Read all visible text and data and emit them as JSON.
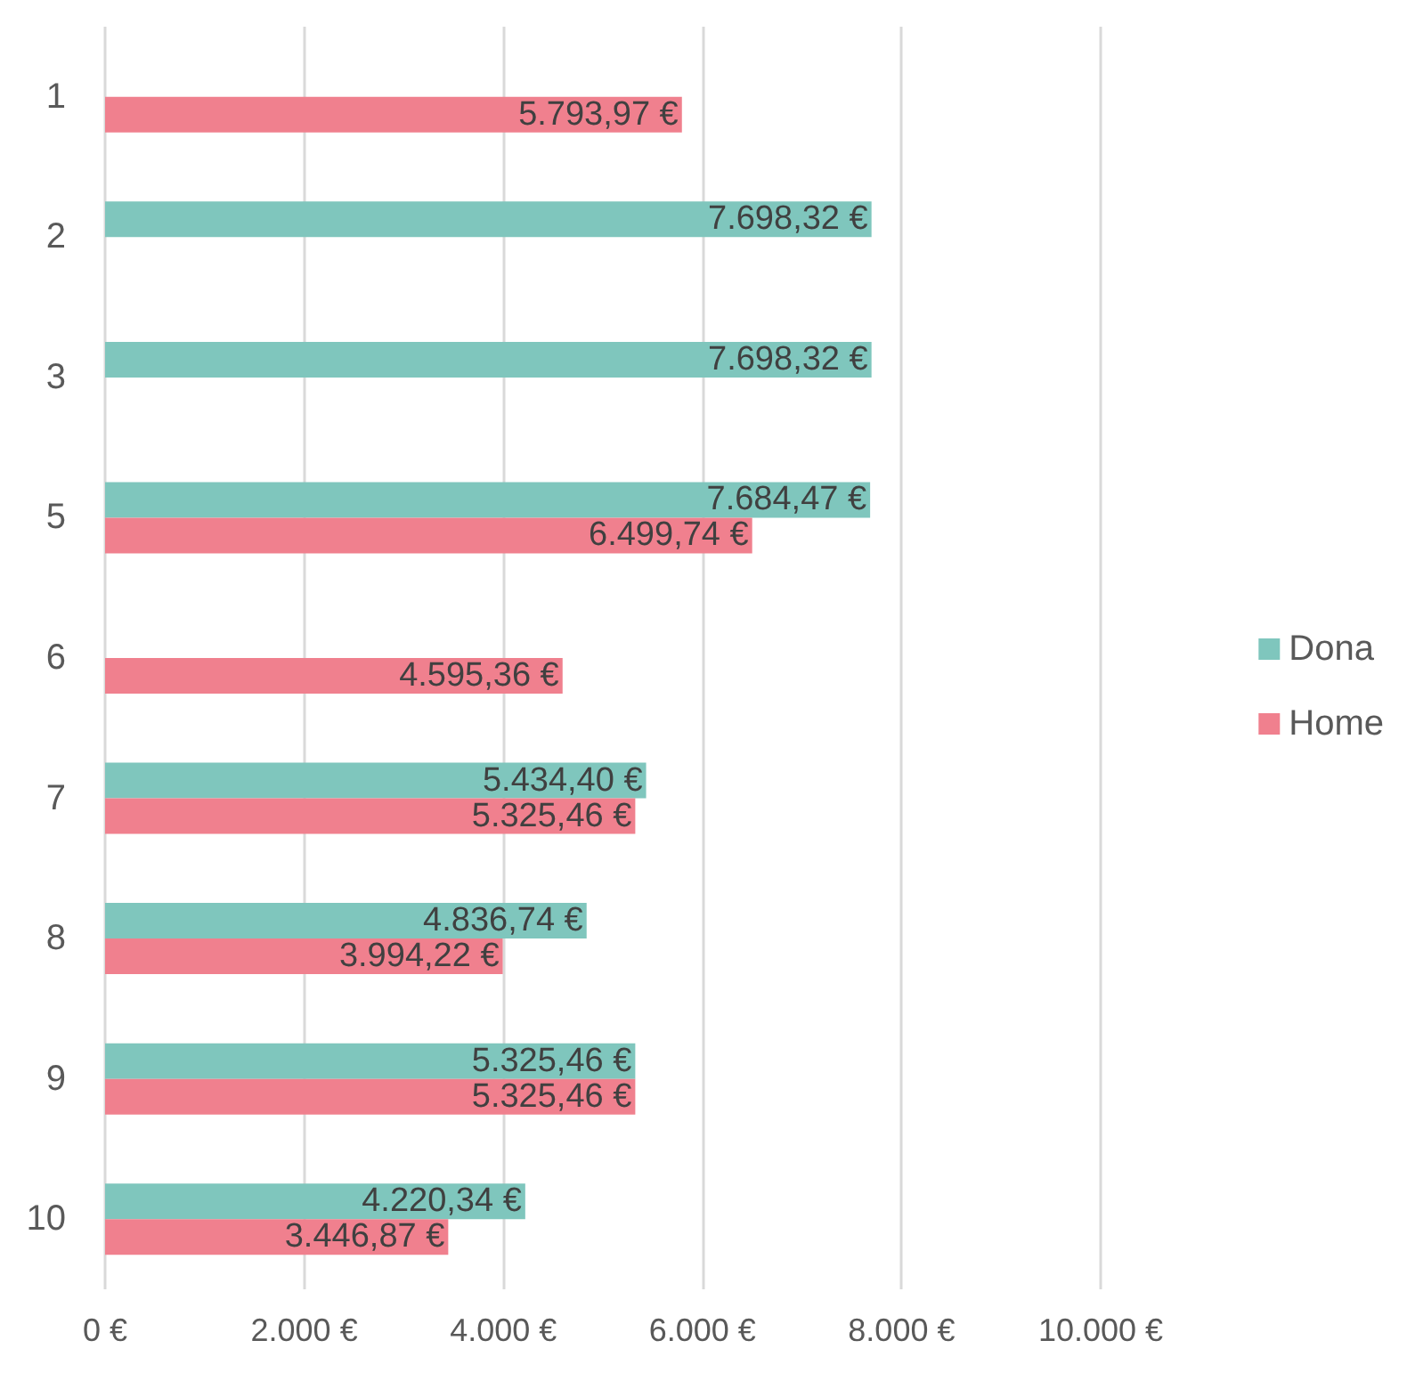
{
  "chart_data": {
    "type": "bar",
    "orientation": "horizontal",
    "categories": [
      "1",
      "2",
      "3",
      "5",
      "6",
      "7",
      "8",
      "9",
      "10"
    ],
    "series": [
      {
        "name": "Dona",
        "color": "#7fc6bd",
        "values": [
          null,
          7698.32,
          7698.32,
          7684.47,
          null,
          5434.4,
          4836.74,
          5325.46,
          4220.34
        ],
        "value_labels": [
          null,
          "7.698,32 €",
          "7.698,32 €",
          "7.684,47 €",
          null,
          "5.434,40 €",
          "4.836,74 €",
          "5.325,46 €",
          "4.220,34 €"
        ]
      },
      {
        "name": "Home",
        "color": "#f0808e",
        "values": [
          5793.97,
          null,
          null,
          6499.74,
          4595.36,
          5325.46,
          3994.22,
          5325.46,
          3446.87
        ],
        "value_labels": [
          "5.793,97 €",
          null,
          null,
          "6.499,74 €",
          "4.595,36 €",
          "5.325,46 €",
          "3.994,22 €",
          "5.325,46 €",
          "3.446,87 €"
        ]
      }
    ],
    "xlim": [
      0,
      10000
    ],
    "xticks": [
      {
        "value": 0,
        "label": "0 €"
      },
      {
        "value": 2000,
        "label": "2.000 €"
      },
      {
        "value": 4000,
        "label": "4.000 €"
      },
      {
        "value": 6000,
        "label": "6.000 €"
      },
      {
        "value": 8000,
        "label": "8.000 €"
      },
      {
        "value": 10000,
        "label": "10.000 €"
      }
    ],
    "grid": "x",
    "legend": "right"
  }
}
